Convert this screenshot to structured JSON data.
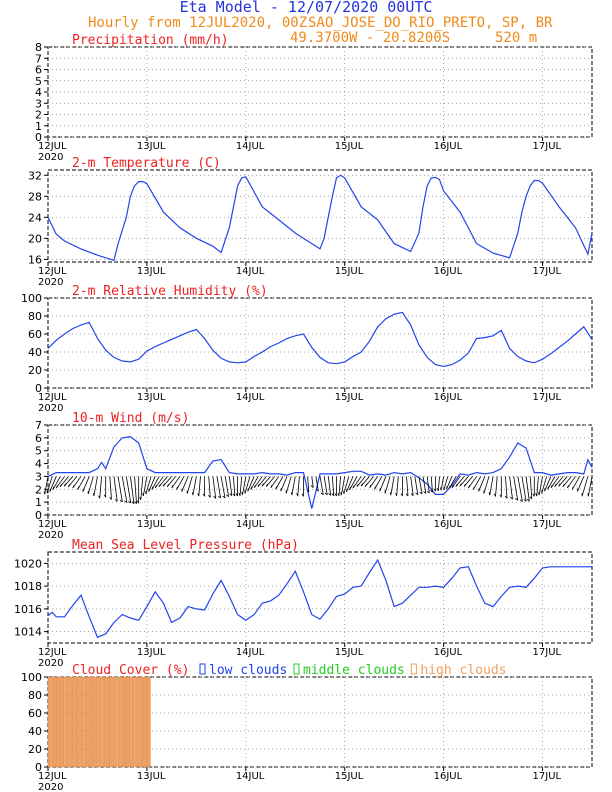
{
  "header": {
    "title": "Eta Model - 12/07/2020 00UTC",
    "subtitle_left": "Hourly from 12JUL2020, 00Z",
    "location": "SAO_JOSE_DO_RIO_PRETO, SP, BR",
    "coords": "49.3700W - 20.8200S",
    "elevation": "520 m"
  },
  "colors": {
    "title": "#2233dd",
    "header": "#f08a1c",
    "panel_title": "#ee2222",
    "line": "#2244ee",
    "grid": "#888888",
    "wind_barb": "#000000",
    "low_clouds": "#2244ee",
    "middle_clouds": "#22cc22",
    "high_clouds": "#f0a060"
  },
  "time_axis": {
    "tick_labels": [
      "12JUL",
      "13JUL",
      "14JUL",
      "15JUL",
      "16JUL",
      "17JUL"
    ],
    "year_label": "2020",
    "hours_total": 132
  },
  "chart_data": [
    {
      "type": "bar",
      "title": "Precipitation (mm/h)",
      "x_hours": [],
      "values": [],
      "ylim": [
        0,
        8
      ],
      "yticks": [
        0,
        1,
        2,
        3,
        4,
        5,
        6,
        7,
        8
      ]
    },
    {
      "type": "line",
      "title": "2-m Temperature (C)",
      "ylim": [
        15.5,
        33
      ],
      "yticks": [
        16,
        20,
        24,
        28,
        32
      ],
      "x_hours": [
        0,
        2,
        4,
        8,
        12,
        16,
        17,
        19,
        20,
        21,
        22,
        23,
        24,
        28,
        32,
        36,
        40,
        42,
        44,
        45,
        46,
        47,
        48,
        52,
        56,
        60,
        64,
        66,
        67,
        68,
        69,
        70,
        71,
        72,
        76,
        80,
        84,
        88,
        90,
        91,
        92,
        93,
        94,
        95,
        96,
        100,
        104,
        108,
        112,
        114,
        115,
        116,
        117,
        118,
        119,
        120,
        124,
        128,
        131,
        132
      ],
      "values": [
        24,
        20.8,
        19.5,
        18,
        16.8,
        15.8,
        19,
        24,
        28,
        30,
        30.8,
        30.8,
        30.4,
        25,
        22,
        20,
        18.5,
        17.3,
        22,
        26,
        30,
        31.5,
        31.7,
        26,
        23.5,
        21,
        19,
        18,
        20,
        24,
        28,
        31.5,
        32,
        31.5,
        26,
        23.5,
        19,
        17.5,
        21,
        26,
        30,
        31.5,
        31.6,
        31.2,
        29,
        25,
        19,
        17.2,
        16.3,
        21,
        25,
        28,
        30,
        31,
        31,
        30.5,
        26,
        22,
        17,
        21
      ]
    },
    {
      "type": "line",
      "title": "2-m Relative Humidity (%)",
      "ylim": [
        0,
        100
      ],
      "yticks": [
        0,
        20,
        40,
        60,
        80,
        100
      ],
      "x_hours": [
        0,
        2,
        4,
        6,
        8,
        10,
        12,
        14,
        16,
        18,
        20,
        22,
        24,
        26,
        28,
        30,
        32,
        34,
        36,
        38,
        40,
        42,
        44,
        46,
        48,
        50,
        52,
        54,
        56,
        58,
        60,
        62,
        64,
        66,
        68,
        70,
        72,
        74,
        76,
        78,
        80,
        82,
        84,
        86,
        88,
        90,
        92,
        94,
        96,
        98,
        100,
        102,
        104,
        106,
        108,
        110,
        112,
        114,
        116,
        118,
        120,
        122,
        124,
        126,
        128,
        130,
        132
      ],
      "values": [
        44,
        53,
        60,
        66,
        70,
        73,
        55,
        42,
        34,
        30,
        29,
        32,
        41,
        46,
        50,
        54,
        58,
        62,
        65,
        55,
        42,
        33,
        29,
        28,
        29,
        35,
        40,
        46,
        50,
        55,
        58,
        60,
        45,
        34,
        28,
        27,
        29,
        35,
        40,
        52,
        68,
        77,
        82,
        84,
        70,
        48,
        34,
        26,
        24,
        26,
        31,
        39,
        55,
        56,
        58,
        64,
        44,
        35,
        30,
        28,
        32,
        38,
        45,
        52,
        60,
        68,
        54
      ]
    },
    {
      "type": "line",
      "title": "10-m Wind (m/s)",
      "ylim": [
        0,
        7
      ],
      "yticks": [
        0,
        1,
        2,
        3,
        4,
        5,
        6,
        7
      ],
      "x_hours": [
        0,
        2,
        4,
        6,
        8,
        10,
        12,
        13,
        14,
        16,
        18,
        20,
        22,
        24,
        26,
        28,
        30,
        32,
        34,
        36,
        38,
        40,
        42,
        44,
        46,
        48,
        50,
        52,
        54,
        56,
        58,
        60,
        62,
        64,
        66,
        68,
        70,
        72,
        74,
        76,
        78,
        80,
        82,
        84,
        86,
        88,
        90,
        92,
        94,
        96,
        98,
        100,
        102,
        104,
        106,
        108,
        110,
        112,
        114,
        116,
        118,
        120,
        122,
        124,
        126,
        128,
        130,
        131,
        132
      ],
      "values": [
        3,
        3.3,
        3.3,
        3.3,
        3.3,
        3.3,
        3.6,
        4.1,
        3.6,
        5.3,
        6,
        6.1,
        5.6,
        3.6,
        3.3,
        3.3,
        3.3,
        3.3,
        3.3,
        3.3,
        3.3,
        4.2,
        4.3,
        3.3,
        3.2,
        3.2,
        3.2,
        3.3,
        3.2,
        3.2,
        3.1,
        3.3,
        3.3,
        0.5,
        3.2,
        3.2,
        3.2,
        3.3,
        3.4,
        3.4,
        3.1,
        3.2,
        3.1,
        3.3,
        3.2,
        3.3,
        2.9,
        2.4,
        1.6,
        1.6,
        2.3,
        3.2,
        3.1,
        3.3,
        3.2,
        3.3,
        3.6,
        4.5,
        5.6,
        5.2,
        3.3,
        3.3,
        3.1,
        3.2,
        3.3,
        3.3,
        3.2,
        4.3,
        3.7
      ],
      "barbs_every_hours": 1
    },
    {
      "type": "line",
      "title": "Mean Sea Level Pressure (hPa)",
      "ylim": [
        1013,
        1021
      ],
      "yticks": [
        1014,
        1016,
        1018,
        1020
      ],
      "x_hours": [
        0,
        1,
        2,
        4,
        6,
        8,
        10,
        12,
        14,
        16,
        18,
        20,
        22,
        24,
        26,
        28,
        30,
        32,
        34,
        36,
        38,
        40,
        42,
        44,
        46,
        48,
        50,
        52,
        54,
        56,
        58,
        60,
        62,
        64,
        66,
        68,
        70,
        72,
        74,
        76,
        78,
        80,
        82,
        84,
        86,
        88,
        90,
        92,
        94,
        96,
        98,
        100,
        102,
        104,
        106,
        108,
        110,
        112,
        114,
        116,
        118,
        120,
        122,
        124,
        126,
        128,
        130,
        132
      ],
      "values": [
        1015.4,
        1015.7,
        1015.3,
        1015.3,
        1016.3,
        1017.2,
        1015.3,
        1013.5,
        1013.8,
        1014.8,
        1015.5,
        1015.2,
        1015,
        1016.2,
        1017.5,
        1016.5,
        1014.8,
        1015.2,
        1016.2,
        1016,
        1015.9,
        1017.3,
        1018.5,
        1017.1,
        1015.5,
        1015,
        1015.5,
        1016.5,
        1016.7,
        1017.2,
        1018.2,
        1019.3,
        1017.5,
        1015.5,
        1015.1,
        1016,
        1017.1,
        1017.3,
        1017.9,
        1018,
        1019.2,
        1020.3,
        1018.5,
        1016.2,
        1016.5,
        1017.2,
        1017.9,
        1017.9,
        1018,
        1017.9,
        1018.7,
        1019.6,
        1019.7,
        1018,
        1016.5,
        1016.2,
        1017.1,
        1017.9,
        1018,
        1017.9,
        1018.7,
        1019.6,
        1019.7,
        1019.7,
        1019.7,
        1019.7,
        1019.7,
        1019.7
      ]
    },
    {
      "type": "bar",
      "title": "Cloud Cover (%)",
      "ylim": [
        0,
        100
      ],
      "yticks": [
        0,
        20,
        40,
        60,
        80,
        100
      ],
      "legend": [
        "low clouds",
        "middle clouds",
        "high clouds"
      ],
      "series": [
        {
          "name": "high clouds",
          "x_hours": [
            0,
            1,
            2,
            3,
            4,
            5,
            6,
            7,
            8,
            9,
            10,
            11,
            12,
            13,
            14,
            15,
            16,
            17,
            18,
            19,
            20,
            21,
            22,
            23,
            24
          ],
          "values": [
            100,
            100,
            100,
            100,
            100,
            100,
            100,
            100,
            100,
            100,
            100,
            100,
            100,
            100,
            100,
            100,
            100,
            100,
            100,
            100,
            100,
            100,
            100,
            100,
            100
          ]
        },
        {
          "name": "middle clouds",
          "x_hours": [],
          "values": []
        },
        {
          "name": "low clouds",
          "x_hours": [],
          "values": []
        }
      ]
    }
  ]
}
